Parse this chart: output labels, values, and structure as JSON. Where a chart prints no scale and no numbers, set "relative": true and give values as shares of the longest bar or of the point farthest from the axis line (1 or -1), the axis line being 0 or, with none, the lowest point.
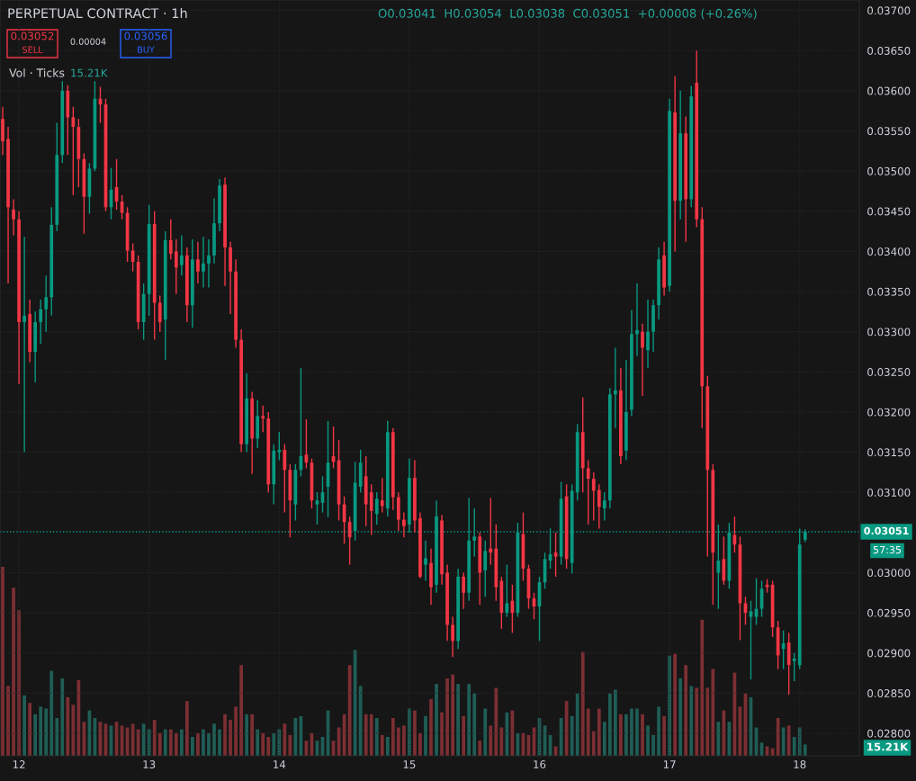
{
  "chart_data": [
    {
      "type": "candlestick",
      "title": "PERPETUAL CONTRACT · 1h",
      "annotations": [
        "O0.03041  H0.03054  L0.03038  C0.03051  +0.00008 (+0.26%)",
        "0.03052",
        "SELL",
        "0.00004",
        "0.03056",
        "BUY",
        "57:35"
      ],
      "x": [
        11.875,
        11.9167,
        11.9583,
        12,
        12.0417,
        12.0833,
        12.125,
        12.1667,
        12.2083,
        12.25,
        12.2917,
        12.3333,
        12.375,
        12.4167,
        12.4583,
        12.5,
        12.5417,
        12.5833,
        12.625,
        12.6667,
        12.7083,
        12.75,
        12.7917,
        12.8333,
        12.875,
        12.9167,
        12.9583,
        13,
        13.0417,
        13.0833,
        13.125,
        13.1667,
        13.2083,
        13.25,
        13.2917,
        13.3333,
        13.375,
        13.4167,
        13.4583,
        13.5,
        13.5417,
        13.5833,
        13.625,
        13.6667,
        13.7083,
        13.75,
        13.7917,
        13.8333,
        13.875,
        13.9167,
        13.9583,
        14,
        14.0417,
        14.0833,
        14.125,
        14.1667,
        14.2083,
        14.25,
        14.2917,
        14.3333,
        14.375,
        14.4167,
        14.4583,
        14.5,
        14.5417,
        14.5833,
        14.625,
        14.6667,
        14.7083,
        14.75,
        14.7917,
        14.8333,
        14.875,
        14.9167,
        14.9583,
        15,
        15.0417,
        15.0833,
        15.125,
        15.1667,
        15.2083,
        15.25,
        15.2917,
        15.3333,
        15.375,
        15.4167,
        15.4583,
        15.5,
        15.5417,
        15.5833,
        15.625,
        15.6667,
        15.7083,
        15.75,
        15.7917,
        15.8333,
        15.875,
        15.9167,
        15.9583,
        16,
        16.0417,
        16.0833,
        16.125,
        16.1667,
        16.2083,
        16.25,
        16.2917,
        16.3333,
        16.375,
        16.4167,
        16.4583,
        16.5,
        16.5417,
        16.5833,
        16.625,
        16.6667,
        16.7083,
        16.75,
        16.7917,
        16.8333,
        16.875,
        16.9167,
        16.9583,
        17,
        17.0417,
        17.0833,
        17.125,
        17.1667,
        17.2083,
        17.25,
        17.2917,
        17.3333,
        17.375,
        17.4167,
        17.4583,
        17.5,
        17.5417,
        17.5833,
        17.625,
        17.6667,
        17.7083,
        17.75,
        17.7917,
        17.8333,
        17.875,
        17.9167,
        17.9583,
        18,
        18.0417
      ],
      "ohlc": [
        [
          0.03565,
          0.0358,
          0.0352,
          0.03537
        ],
        [
          0.0354,
          0.03555,
          0.0336,
          0.03455
        ],
        [
          0.03452,
          0.03465,
          0.0342,
          0.0344
        ],
        [
          0.0344,
          0.0345,
          0.03235,
          0.03312
        ],
        [
          0.03312,
          0.03418,
          0.0315,
          0.0332
        ],
        [
          0.03322,
          0.0334,
          0.03262,
          0.03275
        ],
        [
          0.03275,
          0.03325,
          0.03237,
          0.03312
        ],
        [
          0.03312,
          0.0334,
          0.03285,
          0.03328
        ],
        [
          0.03328,
          0.0337,
          0.033,
          0.03343
        ],
        [
          0.03343,
          0.03455,
          0.0332,
          0.03433
        ],
        [
          0.03433,
          0.0356,
          0.03425,
          0.0352
        ],
        [
          0.0352,
          0.03612,
          0.0351,
          0.036
        ],
        [
          0.036,
          0.03607,
          0.0352,
          0.03567
        ],
        [
          0.03567,
          0.0358,
          0.0347,
          0.03555
        ],
        [
          0.03555,
          0.03565,
          0.0348,
          0.03515
        ],
        [
          0.03515,
          0.03522,
          0.03422,
          0.03468
        ],
        [
          0.03468,
          0.0351,
          0.03447,
          0.03503
        ],
        [
          0.03503,
          0.03612,
          0.035,
          0.0359
        ],
        [
          0.0359,
          0.03605,
          0.0356,
          0.03583
        ],
        [
          0.03583,
          0.0359,
          0.0345,
          0.03455
        ],
        [
          0.03455,
          0.03504,
          0.0344,
          0.03477
        ],
        [
          0.0348,
          0.03515,
          0.03452,
          0.03462
        ],
        [
          0.03462,
          0.0347,
          0.0344,
          0.03448
        ],
        [
          0.03448,
          0.03455,
          0.03387,
          0.03401
        ],
        [
          0.03401,
          0.0341,
          0.03375,
          0.03387
        ],
        [
          0.03387,
          0.03395,
          0.03303,
          0.03312
        ],
        [
          0.03312,
          0.0336,
          0.0329,
          0.03347
        ],
        [
          0.03347,
          0.03458,
          0.0332,
          0.03434
        ],
        [
          0.03434,
          0.0345,
          0.0329,
          0.03336
        ],
        [
          0.03336,
          0.03345,
          0.033,
          0.03312
        ],
        [
          0.03315,
          0.03425,
          0.03265,
          0.03414
        ],
        [
          0.03414,
          0.0344,
          0.0339,
          0.03397
        ],
        [
          0.034,
          0.03415,
          0.03347,
          0.0338
        ],
        [
          0.03383,
          0.0342,
          0.0337,
          0.03395
        ],
        [
          0.03395,
          0.03405,
          0.03312,
          0.03333
        ],
        [
          0.03333,
          0.03415,
          0.03305,
          0.0339
        ],
        [
          0.0339,
          0.03412,
          0.0336,
          0.03375
        ],
        [
          0.03375,
          0.03418,
          0.03355,
          0.03385
        ],
        [
          0.03385,
          0.03415,
          0.03355,
          0.03395
        ],
        [
          0.03395,
          0.03466,
          0.03385,
          0.03435
        ],
        [
          0.03435,
          0.0349,
          0.03425,
          0.03482
        ],
        [
          0.03483,
          0.03492,
          0.03357,
          0.03405
        ],
        [
          0.03405,
          0.03412,
          0.03322,
          0.03375
        ],
        [
          0.03375,
          0.0339,
          0.0328,
          0.0329
        ],
        [
          0.0329,
          0.03303,
          0.0315,
          0.0316
        ],
        [
          0.0316,
          0.03248,
          0.0315,
          0.03217
        ],
        [
          0.03217,
          0.03225,
          0.03123,
          0.03167
        ],
        [
          0.03167,
          0.03215,
          0.03155,
          0.03195
        ],
        [
          0.03195,
          0.03208,
          0.03175,
          0.03192
        ],
        [
          0.03192,
          0.032,
          0.031,
          0.0311
        ],
        [
          0.0311,
          0.0316,
          0.03085,
          0.03152
        ],
        [
          0.0315,
          0.03175,
          0.0314,
          0.03153
        ],
        [
          0.03153,
          0.0316,
          0.03075,
          0.03128
        ],
        [
          0.03128,
          0.03135,
          0.03044,
          0.0309
        ],
        [
          0.03085,
          0.03135,
          0.03065,
          0.03128
        ],
        [
          0.03128,
          0.03255,
          0.0312,
          0.03145
        ],
        [
          0.03147,
          0.03191,
          0.0313,
          0.03137
        ],
        [
          0.03137,
          0.03142,
          0.0308,
          0.0309
        ],
        [
          0.03085,
          0.031,
          0.0306,
          0.0309
        ],
        [
          0.03087,
          0.0312,
          0.03075,
          0.031
        ],
        [
          0.03107,
          0.03189,
          0.03069,
          0.03137
        ],
        [
          0.03145,
          0.03182,
          0.0313,
          0.03138
        ],
        [
          0.0314,
          0.03165,
          0.03065,
          0.03085
        ],
        [
          0.03085,
          0.03095,
          0.03036,
          0.03063
        ],
        [
          0.03063,
          0.0307,
          0.0301,
          0.03044
        ],
        [
          0.03052,
          0.03138,
          0.0304,
          0.03112
        ],
        [
          0.03107,
          0.03153,
          0.031,
          0.03137
        ],
        [
          0.0312,
          0.03145,
          0.03058,
          0.03085
        ],
        [
          0.031,
          0.0311,
          0.03047,
          0.03077
        ],
        [
          0.03073,
          0.031,
          0.0306,
          0.03092
        ],
        [
          0.0309,
          0.03118,
          0.03075,
          0.03083
        ],
        [
          0.0308,
          0.03189,
          0.0307,
          0.03175
        ],
        [
          0.03175,
          0.0318,
          0.03078,
          0.03094
        ],
        [
          0.03094,
          0.031,
          0.03052,
          0.03066
        ],
        [
          0.03066,
          0.03075,
          0.03044,
          0.03058
        ],
        [
          0.0306,
          0.03142,
          0.0305,
          0.03118
        ],
        [
          0.03118,
          0.0314,
          0.0305,
          0.03065
        ],
        [
          0.03068,
          0.03075,
          0.02993,
          0.02995
        ],
        [
          0.0301,
          0.0304,
          0.0299,
          0.03018
        ],
        [
          0.03012,
          0.0303,
          0.0296,
          0.02982
        ],
        [
          0.02985,
          0.0309,
          0.02975,
          0.0307
        ],
        [
          0.03065,
          0.03072,
          0.02985,
          0.02998
        ],
        [
          0.03,
          0.0301,
          0.02915,
          0.02935
        ],
        [
          0.02935,
          0.02945,
          0.02895,
          0.02915
        ],
        [
          0.02915,
          0.03005,
          0.02905,
          0.02995
        ],
        [
          0.02995,
          0.03,
          0.02955,
          0.02975
        ],
        [
          0.02975,
          0.03093,
          0.02965,
          0.0304
        ],
        [
          0.0304,
          0.0308,
          0.0302,
          0.03045
        ],
        [
          0.03045,
          0.0305,
          0.0296,
          0.03
        ],
        [
          0.03003,
          0.0304,
          0.0297,
          0.03027
        ],
        [
          0.0303,
          0.03093,
          0.0301,
          0.03025
        ],
        [
          0.0303,
          0.0306,
          0.02965,
          0.02982
        ],
        [
          0.0299,
          0.02995,
          0.0293,
          0.0295
        ],
        [
          0.0295,
          0.0301,
          0.02945,
          0.02962
        ],
        [
          0.02965,
          0.02985,
          0.02925,
          0.0295
        ],
        [
          0.0295,
          0.03062,
          0.02945,
          0.0305
        ],
        [
          0.03048,
          0.03075,
          0.0299,
          0.03005
        ],
        [
          0.03005,
          0.0301,
          0.02955,
          0.02968
        ],
        [
          0.02968,
          0.02975,
          0.02942,
          0.02958
        ],
        [
          0.02958,
          0.02995,
          0.02915,
          0.02988
        ],
        [
          0.02988,
          0.03025,
          0.0298,
          0.03017
        ],
        [
          0.03015,
          0.03055,
          0.03005,
          0.03023
        ],
        [
          0.03025,
          0.0305,
          0.02995,
          0.0302
        ],
        [
          0.0302,
          0.03113,
          0.0301,
          0.03092
        ],
        [
          0.03095,
          0.0311,
          0.03005,
          0.03017
        ],
        [
          0.03012,
          0.0311,
          0.02999,
          0.03102
        ],
        [
          0.031,
          0.03185,
          0.0309,
          0.03175
        ],
        [
          0.03175,
          0.03218,
          0.031,
          0.0313
        ],
        [
          0.0313,
          0.0314,
          0.0306,
          0.03117
        ],
        [
          0.03117,
          0.03125,
          0.03065,
          0.03102
        ],
        [
          0.03103,
          0.0311,
          0.03055,
          0.03082
        ],
        [
          0.0308,
          0.031,
          0.03065,
          0.0309
        ],
        [
          0.0309,
          0.0323,
          0.0308,
          0.03222
        ],
        [
          0.03222,
          0.0328,
          0.0318,
          0.03227
        ],
        [
          0.03227,
          0.03255,
          0.03135,
          0.03145
        ],
        [
          0.03152,
          0.03265,
          0.0314,
          0.032
        ],
        [
          0.03203,
          0.03327,
          0.03195,
          0.03297
        ],
        [
          0.03297,
          0.0336,
          0.0327,
          0.03302
        ],
        [
          0.033,
          0.0331,
          0.0322,
          0.0328
        ],
        [
          0.03277,
          0.0334,
          0.03255,
          0.033
        ],
        [
          0.033,
          0.0334,
          0.03275,
          0.03333
        ],
        [
          0.03333,
          0.03405,
          0.03315,
          0.0339
        ],
        [
          0.03395,
          0.03412,
          0.03345,
          0.03355
        ],
        [
          0.03357,
          0.0359,
          0.0335,
          0.03575
        ],
        [
          0.03573,
          0.03618,
          0.034,
          0.03463
        ],
        [
          0.03463,
          0.036,
          0.0344,
          0.03547
        ],
        [
          0.03547,
          0.03568,
          0.03412,
          0.03465
        ],
        [
          0.03465,
          0.03606,
          0.03455,
          0.03593
        ],
        [
          0.0361,
          0.0365,
          0.0343,
          0.0344
        ],
        [
          0.0344,
          0.03455,
          0.0318,
          0.03232
        ],
        [
          0.03232,
          0.03245,
          0.0302,
          0.03128
        ],
        [
          0.03128,
          0.03135,
          0.0296,
          0.03025
        ],
        [
          0.03,
          0.0306,
          0.02955,
          0.03015
        ],
        [
          0.03017,
          0.03045,
          0.02985,
          0.0299
        ],
        [
          0.0299,
          0.03062,
          0.0298,
          0.0305
        ],
        [
          0.03047,
          0.0307,
          0.03025,
          0.03035
        ],
        [
          0.03035,
          0.03045,
          0.02916,
          0.02962
        ],
        [
          0.02962,
          0.0297,
          0.02935,
          0.0295
        ],
        [
          0.02945,
          0.02965,
          0.02867,
          0.02952
        ],
        [
          0.02945,
          0.02993,
          0.02935,
          0.02955
        ],
        [
          0.02955,
          0.0299,
          0.02945,
          0.0298
        ],
        [
          0.02985,
          0.02992,
          0.02975,
          0.02982
        ],
        [
          0.02985,
          0.0299,
          0.0292,
          0.02932
        ],
        [
          0.02932,
          0.0294,
          0.0288,
          0.02897
        ],
        [
          0.02905,
          0.02928,
          0.0288,
          0.02912
        ],
        [
          0.02913,
          0.02925,
          0.02848,
          0.02885
        ],
        [
          0.0289,
          0.029,
          0.02865,
          0.02893
        ],
        [
          0.02885,
          0.03055,
          0.0288,
          0.03035
        ],
        [
          0.03041,
          0.03054,
          0.03038,
          0.03051
        ]
      ],
      "colors": [
        "#f23645",
        "#f23645",
        "#f23645",
        "#f23645",
        "#089981",
        "#f23645",
        "#089981",
        "#089981",
        "#089981",
        "#089981",
        "#089981",
        "#089981",
        "#f23645",
        "#f23645",
        "#f23645",
        "#f23645",
        "#089981",
        "#089981",
        "#f23645",
        "#f23645",
        "#089981",
        "#f23645",
        "#f23645",
        "#f23645",
        "#f23645",
        "#f23645",
        "#089981",
        "#089981",
        "#f23645",
        "#f23645",
        "#089981",
        "#f23645",
        "#f23645",
        "#089981",
        "#f23645",
        "#089981",
        "#f23645",
        "#089981",
        "#089981",
        "#089981",
        "#089981",
        "#f23645",
        "#f23645",
        "#f23645",
        "#f23645",
        "#089981",
        "#f23645",
        "#089981",
        "#f23645",
        "#f23645",
        "#089981",
        "#089981",
        "#f23645",
        "#f23645",
        "#089981",
        "#089981",
        "#f23645",
        "#f23645",
        "#089981",
        "#089981",
        "#089981",
        "#f23645",
        "#f23645",
        "#f23645",
        "#f23645",
        "#089981",
        "#089981",
        "#f23645",
        "#f23645",
        "#089981",
        "#f23645",
        "#089981",
        "#f23645",
        "#f23645",
        "#f23645",
        "#089981",
        "#f23645",
        "#f23645",
        "#089981",
        "#f23645",
        "#089981",
        "#f23645",
        "#f23645",
        "#f23645",
        "#089981",
        "#f23645",
        "#089981",
        "#089981",
        "#f23645",
        "#089981",
        "#f23645",
        "#f23645",
        "#f23645",
        "#089981",
        "#f23645",
        "#089981",
        "#f23645",
        "#f23645",
        "#f23645",
        "#089981",
        "#089981",
        "#089981",
        "#f23645",
        "#089981",
        "#f23645",
        "#089981",
        "#089981",
        "#f23645",
        "#f23645",
        "#f23645",
        "#f23645",
        "#089981",
        "#089981",
        "#089981",
        "#f23645",
        "#089981",
        "#089981",
        "#089981",
        "#f23645",
        "#089981",
        "#089981",
        "#089981",
        "#f23645",
        "#089981",
        "#f23645",
        "#089981",
        "#f23645",
        "#089981",
        "#f23645",
        "#f23645",
        "#f23645",
        "#f23645",
        "#089981",
        "#f23645",
        "#089981",
        "#f23645",
        "#f23645",
        "#f23645",
        "#089981",
        "#089981",
        "#089981",
        "#f23645",
        "#f23645",
        "#f23645",
        "#089981",
        "#f23645",
        "#089981",
        "#089981",
        "#089981"
      ],
      "xlim": [
        11.8542,
        18.4583
      ],
      "xticks": [
        12,
        13,
        14,
        15,
        16,
        17,
        18
      ],
      "ylim": [
        0.02772,
        0.03713
      ],
      "yticks": [
        {
          "value": 0.028,
          "label": "0.02800"
        },
        {
          "value": 0.0285,
          "label": "0.02850"
        },
        {
          "value": 0.029,
          "label": "0.02900"
        },
        {
          "value": 0.0295,
          "label": "0.02950"
        },
        {
          "value": 0.03,
          "label": "0.03000"
        },
        {
          "value": 0.031,
          "label": "0.03100"
        },
        {
          "value": 0.0315,
          "label": "0.03150"
        },
        {
          "value": 0.032,
          "label": "0.03200"
        },
        {
          "value": 0.0325,
          "label": "0.03250"
        },
        {
          "value": 0.033,
          "label": "0.03300"
        },
        {
          "value": 0.0335,
          "label": "0.03350"
        },
        {
          "value": 0.034,
          "label": "0.03400"
        },
        {
          "value": 0.0345,
          "label": "0.03450"
        },
        {
          "value": 0.035,
          "label": "0.03500"
        },
        {
          "value": 0.0355,
          "label": "0.03550"
        },
        {
          "value": 0.036,
          "label": "0.03600"
        },
        {
          "value": 0.0365,
          "label": "0.03650"
        },
        {
          "value": 0.037,
          "label": "0.03700"
        }
      ],
      "ref_lines": [
        {
          "axis": "y",
          "value": 0.03051,
          "label": "0.03051",
          "color": "#089981",
          "line_style": "dotted"
        }
      ],
      "grid": true
    },
    {
      "type": "bar",
      "title": "Vol · Ticks",
      "annotations": [
        "15.21K",
        "15.21K"
      ],
      "relative": true,
      "categories": [
        null,
        null,
        null,
        null,
        null,
        null,
        null,
        null,
        null,
        null,
        null,
        null,
        null,
        null,
        null,
        null,
        null,
        null,
        null,
        null,
        null,
        null,
        null,
        null,
        null,
        null,
        null,
        null,
        null,
        null,
        null,
        null,
        null,
        null,
        null,
        null,
        null,
        null,
        null,
        null,
        null,
        null,
        null,
        null,
        null,
        null,
        null,
        null,
        null,
        null,
        null,
        null,
        null,
        null,
        null,
        null,
        null,
        null,
        null,
        null,
        null,
        null,
        null,
        null,
        null,
        null,
        null,
        null,
        null,
        null,
        null,
        null,
        null,
        null,
        null,
        null,
        null,
        null,
        null,
        null,
        null,
        null,
        null,
        null,
        null,
        null,
        null,
        null,
        null,
        null,
        null,
        null,
        null,
        null,
        null,
        null,
        null,
        null,
        null,
        null,
        null,
        null,
        null,
        null,
        null,
        null,
        null,
        null,
        null,
        null,
        null,
        null,
        null,
        null,
        null,
        null,
        null,
        null,
        null,
        null,
        null,
        null,
        null,
        null,
        null,
        null,
        null,
        null,
        null,
        null,
        null,
        null,
        null,
        null,
        null,
        null,
        null,
        null,
        null,
        null,
        null,
        null,
        null,
        null,
        null,
        null,
        null,
        null,
        null
      ],
      "values": [
        1.0,
        0.37,
        0.89,
        0.77,
        0.32,
        0.28,
        0.22,
        0.26,
        0.25,
        0.45,
        0.2,
        0.41,
        0.31,
        0.27,
        0.4,
        0.18,
        0.24,
        0.2,
        0.18,
        0.17,
        0.16,
        0.18,
        0.16,
        0.15,
        0.17,
        0.14,
        0.17,
        0.14,
        0.19,
        0.12,
        0.14,
        0.14,
        0.12,
        0.14,
        0.29,
        0.1,
        0.12,
        0.14,
        0.12,
        0.17,
        0.14,
        0.22,
        0.19,
        0.26,
        0.48,
        0.22,
        0.22,
        0.14,
        0.12,
        0.1,
        0.12,
        0.14,
        0.17,
        0.11,
        0.2,
        0.21,
        0.08,
        0.12,
        0.08,
        0.1,
        0.24,
        0.08,
        0.15,
        0.22,
        0.48,
        0.56,
        0.37,
        0.22,
        0.22,
        0.2,
        0.11,
        0.1,
        0.2,
        0.15,
        0.16,
        0.25,
        0.24,
        0.12,
        0.21,
        0.3,
        0.38,
        0.23,
        0.41,
        0.43,
        0.38,
        0.21,
        0.38,
        0.33,
        0.08,
        0.25,
        0.16,
        0.36,
        0.15,
        0.23,
        0.24,
        0.12,
        0.12,
        0.11,
        0.15,
        0.2,
        0.16,
        0.11,
        0.05,
        0.2,
        0.29,
        0.21,
        0.33,
        0.55,
        0.25,
        0.13,
        0.25,
        0.18,
        0.33,
        0.35,
        0.22,
        0.22,
        0.25,
        0.25,
        0.22,
        0.16,
        0.11,
        0.26,
        0.21,
        0.53,
        0.54,
        0.41,
        0.48,
        0.37,
        0.36,
        0.72,
        0.36,
        0.46,
        0.18,
        0.24,
        0.18,
        0.44,
        0.26,
        0.33,
        0.31,
        0.15,
        0.07,
        0.05,
        0.04,
        0.2,
        0.15,
        0.16,
        0.1,
        0.15,
        0.06
      ],
      "colors": [
        "#7c2f33",
        "#7c2f33",
        "#7c2f33",
        "#7c2f33",
        "#1f5e56",
        "#7c2f33",
        "#1f5e56",
        "#1f5e56",
        "#1f5e56",
        "#1f5e56",
        "#1f5e56",
        "#1f5e56",
        "#7c2f33",
        "#7c2f33",
        "#7c2f33",
        "#7c2f33",
        "#1f5e56",
        "#1f5e56",
        "#7c2f33",
        "#7c2f33",
        "#1f5e56",
        "#7c2f33",
        "#7c2f33",
        "#7c2f33",
        "#7c2f33",
        "#7c2f33",
        "#1f5e56",
        "#1f5e56",
        "#7c2f33",
        "#7c2f33",
        "#1f5e56",
        "#7c2f33",
        "#7c2f33",
        "#1f5e56",
        "#7c2f33",
        "#1f5e56",
        "#7c2f33",
        "#1f5e56",
        "#1f5e56",
        "#1f5e56",
        "#1f5e56",
        "#7c2f33",
        "#7c2f33",
        "#7c2f33",
        "#7c2f33",
        "#1f5e56",
        "#7c2f33",
        "#1f5e56",
        "#7c2f33",
        "#7c2f33",
        "#1f5e56",
        "#1f5e56",
        "#7c2f33",
        "#7c2f33",
        "#1f5e56",
        "#1f5e56",
        "#7c2f33",
        "#7c2f33",
        "#1f5e56",
        "#1f5e56",
        "#1f5e56",
        "#7c2f33",
        "#7c2f33",
        "#7c2f33",
        "#7c2f33",
        "#1f5e56",
        "#1f5e56",
        "#7c2f33",
        "#7c2f33",
        "#1f5e56",
        "#7c2f33",
        "#1f5e56",
        "#7c2f33",
        "#7c2f33",
        "#7c2f33",
        "#1f5e56",
        "#7c2f33",
        "#7c2f33",
        "#1f5e56",
        "#7c2f33",
        "#1f5e56",
        "#7c2f33",
        "#7c2f33",
        "#7c2f33",
        "#1f5e56",
        "#7c2f33",
        "#1f5e56",
        "#1f5e56",
        "#7c2f33",
        "#1f5e56",
        "#7c2f33",
        "#7c2f33",
        "#7c2f33",
        "#1f5e56",
        "#7c2f33",
        "#1f5e56",
        "#7c2f33",
        "#7c2f33",
        "#7c2f33",
        "#1f5e56",
        "#1f5e56",
        "#1f5e56",
        "#7c2f33",
        "#1f5e56",
        "#7c2f33",
        "#1f5e56",
        "#1f5e56",
        "#7c2f33",
        "#7c2f33",
        "#7c2f33",
        "#7c2f33",
        "#1f5e56",
        "#1f5e56",
        "#1f5e56",
        "#7c2f33",
        "#1f5e56",
        "#1f5e56",
        "#1f5e56",
        "#7c2f33",
        "#1f5e56",
        "#1f5e56",
        "#1f5e56",
        "#7c2f33",
        "#1f5e56",
        "#7c2f33",
        "#1f5e56",
        "#7c2f33",
        "#1f5e56",
        "#7c2f33",
        "#7c2f33",
        "#7c2f33",
        "#7c2f33",
        "#1f5e56",
        "#7c2f33",
        "#1f5e56",
        "#7c2f33",
        "#7c2f33",
        "#7c2f33",
        "#1f5e56",
        "#1f5e56",
        "#1f5e56",
        "#7c2f33",
        "#7c2f33",
        "#7c2f33",
        "#1f5e56",
        "#7c2f33",
        "#1f5e56",
        "#1f5e56",
        "#1f5e56"
      ]
    }
  ]
}
